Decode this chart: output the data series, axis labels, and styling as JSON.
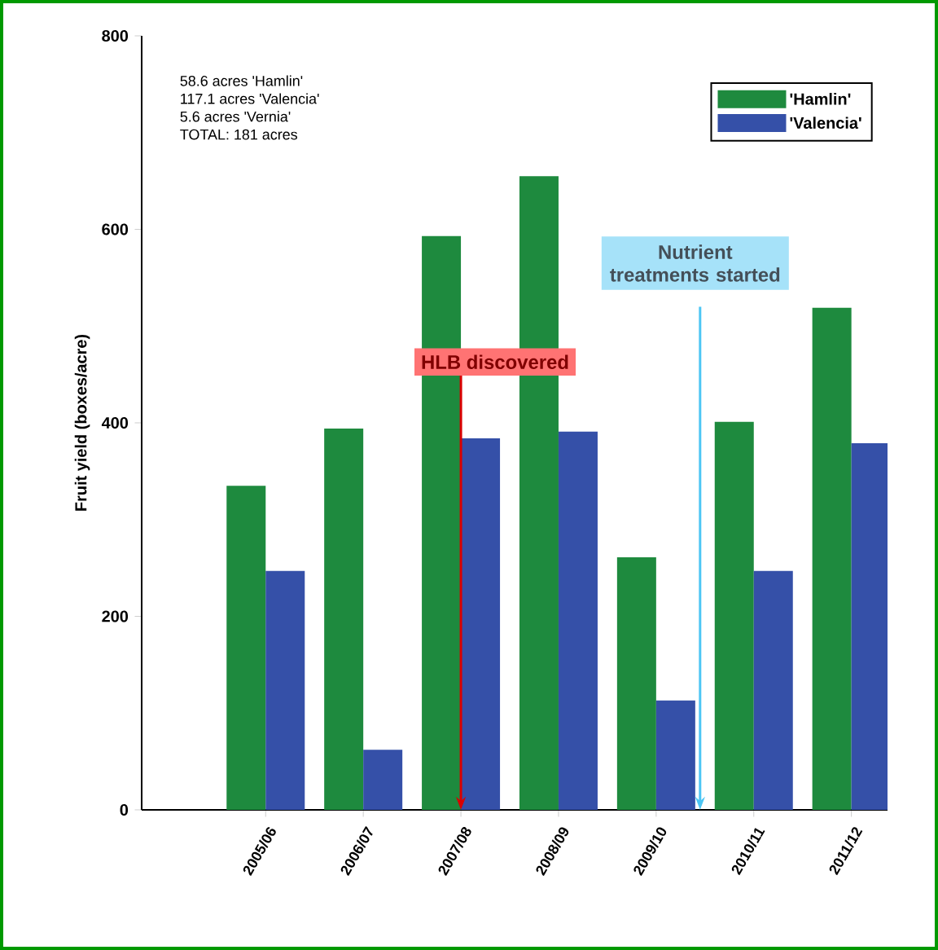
{
  "chart_data": {
    "type": "bar",
    "categories": [
      "2005/06",
      "2006/07",
      "2007/08",
      "2008/09",
      "2009/10",
      "2010/11",
      "2011/12"
    ],
    "ylabel": "Fruit yield (boxes/acre)",
    "series": [
      {
        "name": "'Hamlin'",
        "color": "#1e8a3e",
        "values": [
          335,
          394,
          593,
          655,
          261,
          401,
          519
        ]
      },
      {
        "name": "'Valencia'",
        "color": "#3550a8",
        "values": [
          247,
          62,
          384,
          391,
          113,
          247,
          379
        ]
      }
    ],
    "ylim": [
      0,
      800
    ],
    "yticks": [
      0,
      200,
      400,
      600,
      800
    ],
    "legend": "top right",
    "annotations": [
      "58.6 acres 'Hamlin'",
      "117.1 acres 'Valencia'",
      "5.6 acres 'Vernia'",
      "TOTAL: 181 acres",
      {
        "text": "HLB discovered",
        "x": "2007/08",
        "y": 0
      },
      {
        "text": "Nutrient treatments started",
        "y": 0
      }
    ]
  }
}
